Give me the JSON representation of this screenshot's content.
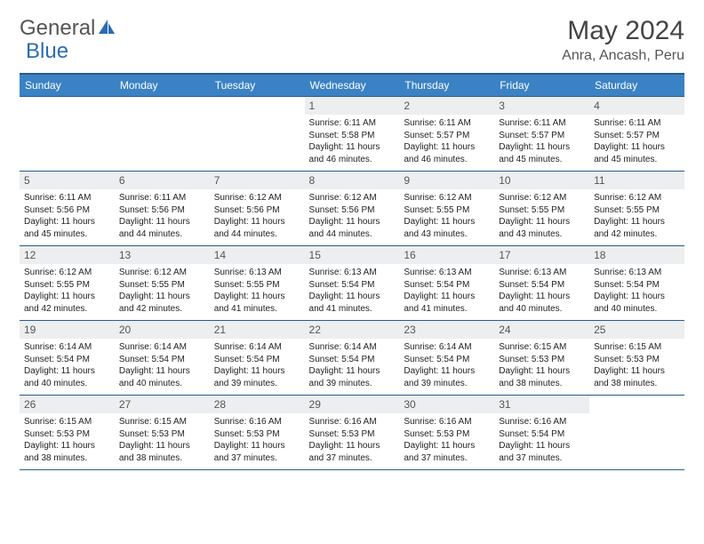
{
  "brand": {
    "word1": "General",
    "word2": "Blue"
  },
  "title": "May 2024",
  "location": "Anra, Ancash, Peru",
  "colors": {
    "header_bg": "#3b82c4",
    "header_border": "#2a5a8a",
    "daynum_bg": "#eceef0",
    "text": "#222222",
    "logo_accent": "#2a6db0"
  },
  "weekdays": [
    "Sunday",
    "Monday",
    "Tuesday",
    "Wednesday",
    "Thursday",
    "Friday",
    "Saturday"
  ],
  "weeks": [
    [
      {
        "n": "",
        "lines": [
          "",
          "",
          "",
          ""
        ]
      },
      {
        "n": "",
        "lines": [
          "",
          "",
          "",
          ""
        ]
      },
      {
        "n": "",
        "lines": [
          "",
          "",
          "",
          ""
        ]
      },
      {
        "n": "1",
        "lines": [
          "Sunrise: 6:11 AM",
          "Sunset: 5:58 PM",
          "Daylight: 11 hours",
          "and 46 minutes."
        ]
      },
      {
        "n": "2",
        "lines": [
          "Sunrise: 6:11 AM",
          "Sunset: 5:57 PM",
          "Daylight: 11 hours",
          "and 46 minutes."
        ]
      },
      {
        "n": "3",
        "lines": [
          "Sunrise: 6:11 AM",
          "Sunset: 5:57 PM",
          "Daylight: 11 hours",
          "and 45 minutes."
        ]
      },
      {
        "n": "4",
        "lines": [
          "Sunrise: 6:11 AM",
          "Sunset: 5:57 PM",
          "Daylight: 11 hours",
          "and 45 minutes."
        ]
      }
    ],
    [
      {
        "n": "5",
        "lines": [
          "Sunrise: 6:11 AM",
          "Sunset: 5:56 PM",
          "Daylight: 11 hours",
          "and 45 minutes."
        ]
      },
      {
        "n": "6",
        "lines": [
          "Sunrise: 6:11 AM",
          "Sunset: 5:56 PM",
          "Daylight: 11 hours",
          "and 44 minutes."
        ]
      },
      {
        "n": "7",
        "lines": [
          "Sunrise: 6:12 AM",
          "Sunset: 5:56 PM",
          "Daylight: 11 hours",
          "and 44 minutes."
        ]
      },
      {
        "n": "8",
        "lines": [
          "Sunrise: 6:12 AM",
          "Sunset: 5:56 PM",
          "Daylight: 11 hours",
          "and 44 minutes."
        ]
      },
      {
        "n": "9",
        "lines": [
          "Sunrise: 6:12 AM",
          "Sunset: 5:55 PM",
          "Daylight: 11 hours",
          "and 43 minutes."
        ]
      },
      {
        "n": "10",
        "lines": [
          "Sunrise: 6:12 AM",
          "Sunset: 5:55 PM",
          "Daylight: 11 hours",
          "and 43 minutes."
        ]
      },
      {
        "n": "11",
        "lines": [
          "Sunrise: 6:12 AM",
          "Sunset: 5:55 PM",
          "Daylight: 11 hours",
          "and 42 minutes."
        ]
      }
    ],
    [
      {
        "n": "12",
        "lines": [
          "Sunrise: 6:12 AM",
          "Sunset: 5:55 PM",
          "Daylight: 11 hours",
          "and 42 minutes."
        ]
      },
      {
        "n": "13",
        "lines": [
          "Sunrise: 6:12 AM",
          "Sunset: 5:55 PM",
          "Daylight: 11 hours",
          "and 42 minutes."
        ]
      },
      {
        "n": "14",
        "lines": [
          "Sunrise: 6:13 AM",
          "Sunset: 5:55 PM",
          "Daylight: 11 hours",
          "and 41 minutes."
        ]
      },
      {
        "n": "15",
        "lines": [
          "Sunrise: 6:13 AM",
          "Sunset: 5:54 PM",
          "Daylight: 11 hours",
          "and 41 minutes."
        ]
      },
      {
        "n": "16",
        "lines": [
          "Sunrise: 6:13 AM",
          "Sunset: 5:54 PM",
          "Daylight: 11 hours",
          "and 41 minutes."
        ]
      },
      {
        "n": "17",
        "lines": [
          "Sunrise: 6:13 AM",
          "Sunset: 5:54 PM",
          "Daylight: 11 hours",
          "and 40 minutes."
        ]
      },
      {
        "n": "18",
        "lines": [
          "Sunrise: 6:13 AM",
          "Sunset: 5:54 PM",
          "Daylight: 11 hours",
          "and 40 minutes."
        ]
      }
    ],
    [
      {
        "n": "19",
        "lines": [
          "Sunrise: 6:14 AM",
          "Sunset: 5:54 PM",
          "Daylight: 11 hours",
          "and 40 minutes."
        ]
      },
      {
        "n": "20",
        "lines": [
          "Sunrise: 6:14 AM",
          "Sunset: 5:54 PM",
          "Daylight: 11 hours",
          "and 40 minutes."
        ]
      },
      {
        "n": "21",
        "lines": [
          "Sunrise: 6:14 AM",
          "Sunset: 5:54 PM",
          "Daylight: 11 hours",
          "and 39 minutes."
        ]
      },
      {
        "n": "22",
        "lines": [
          "Sunrise: 6:14 AM",
          "Sunset: 5:54 PM",
          "Daylight: 11 hours",
          "and 39 minutes."
        ]
      },
      {
        "n": "23",
        "lines": [
          "Sunrise: 6:14 AM",
          "Sunset: 5:54 PM",
          "Daylight: 11 hours",
          "and 39 minutes."
        ]
      },
      {
        "n": "24",
        "lines": [
          "Sunrise: 6:15 AM",
          "Sunset: 5:53 PM",
          "Daylight: 11 hours",
          "and 38 minutes."
        ]
      },
      {
        "n": "25",
        "lines": [
          "Sunrise: 6:15 AM",
          "Sunset: 5:53 PM",
          "Daylight: 11 hours",
          "and 38 minutes."
        ]
      }
    ],
    [
      {
        "n": "26",
        "lines": [
          "Sunrise: 6:15 AM",
          "Sunset: 5:53 PM",
          "Daylight: 11 hours",
          "and 38 minutes."
        ]
      },
      {
        "n": "27",
        "lines": [
          "Sunrise: 6:15 AM",
          "Sunset: 5:53 PM",
          "Daylight: 11 hours",
          "and 38 minutes."
        ]
      },
      {
        "n": "28",
        "lines": [
          "Sunrise: 6:16 AM",
          "Sunset: 5:53 PM",
          "Daylight: 11 hours",
          "and 37 minutes."
        ]
      },
      {
        "n": "29",
        "lines": [
          "Sunrise: 6:16 AM",
          "Sunset: 5:53 PM",
          "Daylight: 11 hours",
          "and 37 minutes."
        ]
      },
      {
        "n": "30",
        "lines": [
          "Sunrise: 6:16 AM",
          "Sunset: 5:53 PM",
          "Daylight: 11 hours",
          "and 37 minutes."
        ]
      },
      {
        "n": "31",
        "lines": [
          "Sunrise: 6:16 AM",
          "Sunset: 5:54 PM",
          "Daylight: 11 hours",
          "and 37 minutes."
        ]
      },
      {
        "n": "",
        "lines": [
          "",
          "",
          "",
          ""
        ]
      }
    ]
  ]
}
